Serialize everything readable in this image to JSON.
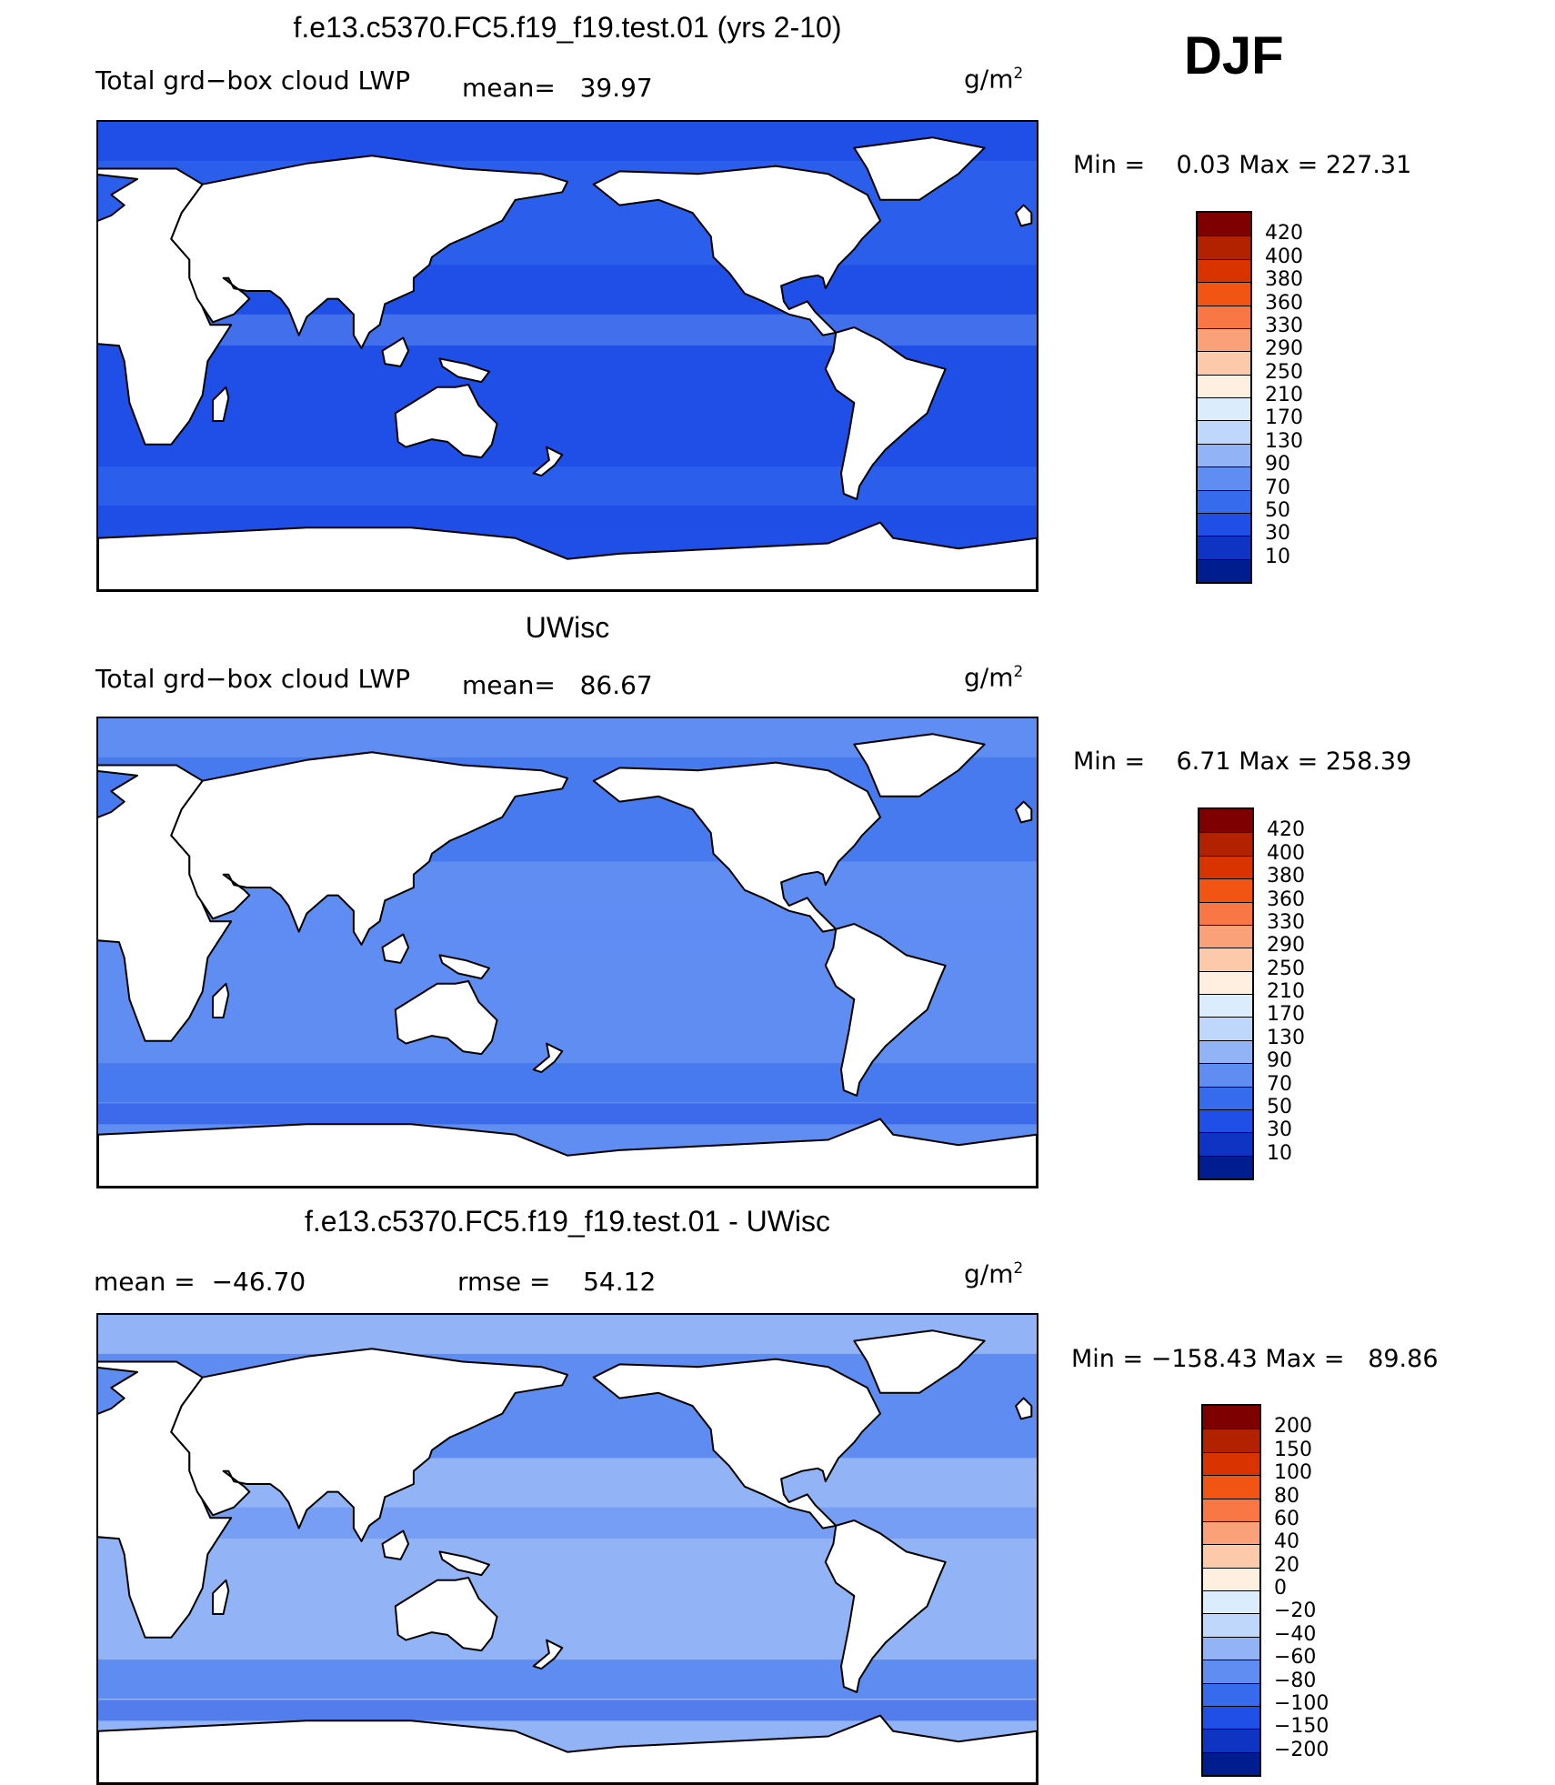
{
  "season": "DJF",
  "panels": [
    {
      "title": "f.e13.c5370.FC5.f19_f19.test.01 (yrs 2-10)",
      "variable": "Total grd−box cloud LWP",
      "stat1_label": "mean=",
      "stat1_value": "39.97",
      "units": "g/m",
      "units_sup": "2",
      "min_label": "Min =",
      "min_value": "0.03",
      "max_label": "Max =",
      "max_value": "227.31",
      "colorbar": {
        "colors": [
          "#7f0000",
          "#b22200",
          "#d93300",
          "#f25513",
          "#f97744",
          "#fba179",
          "#fccaaa",
          "#feefe0",
          "#dbecfd",
          "#bfd7fb",
          "#92b4f7",
          "#5f8df2",
          "#356bec",
          "#1f4fe6",
          "#0f33c3",
          "#001d8f"
        ],
        "labels": [
          "420",
          "400",
          "380",
          "360",
          "330",
          "290",
          "250",
          "210",
          "170",
          "130",
          "90",
          "70",
          "50",
          "30",
          "10"
        ]
      },
      "map": {
        "ocean_fill": "#1f4fe6"
      }
    },
    {
      "title": "UWisc",
      "variable": "Total grd−box cloud LWP",
      "stat1_label": "mean=",
      "stat1_value": "86.67",
      "units": "g/m",
      "units_sup": "2",
      "min_label": "Min =",
      "min_value": "6.71",
      "max_label": "Max =",
      "max_value": "258.39",
      "colorbar": {
        "colors": [
          "#7f0000",
          "#b22200",
          "#d93300",
          "#f25513",
          "#f97744",
          "#fba179",
          "#fccaaa",
          "#feefe0",
          "#dbecfd",
          "#bfd7fb",
          "#92b4f7",
          "#5f8df2",
          "#356bec",
          "#1f4fe6",
          "#0f33c3",
          "#001d8f"
        ],
        "labels": [
          "420",
          "400",
          "380",
          "360",
          "330",
          "290",
          "250",
          "210",
          "170",
          "130",
          "90",
          "70",
          "50",
          "30",
          "10"
        ]
      },
      "map": {
        "ocean_fill": "#5f8df2"
      }
    },
    {
      "title": "f.e13.c5370.FC5.f19_f19.test.01 - UWisc",
      "stat1_label": "mean =",
      "stat1_value": "−46.70",
      "stat2_label": "rmse =",
      "stat2_value": "54.12",
      "units": "g/m",
      "units_sup": "2",
      "min_label": "Min =",
      "min_value": "−158.43",
      "max_label": "Max =",
      "max_value": "89.86",
      "colorbar": {
        "colors": [
          "#7f0000",
          "#b22200",
          "#d93300",
          "#f25513",
          "#f97744",
          "#fba179",
          "#fccaaa",
          "#feefe0",
          "#dbecfd",
          "#bfd7fb",
          "#92b4f7",
          "#5f8df2",
          "#356bec",
          "#1f4fe6",
          "#0f33c3",
          "#001d8f"
        ],
        "labels": [
          "200",
          "150",
          "100",
          "80",
          "60",
          "40",
          "20",
          "0",
          "−20",
          "−40",
          "−60",
          "−80",
          "−100",
          "−150",
          "−200"
        ]
      },
      "map": {
        "ocean_fill": "#92b4f7"
      }
    }
  ]
}
